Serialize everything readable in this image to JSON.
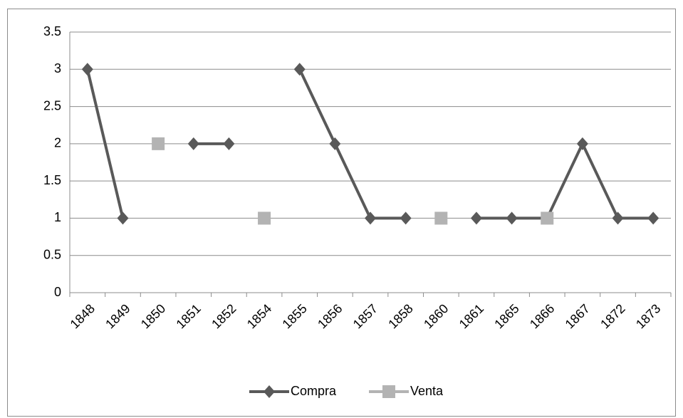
{
  "chart_data": {
    "type": "line",
    "categories": [
      "1848",
      "1849",
      "1850",
      "1851",
      "1852",
      "1854",
      "1855",
      "1856",
      "1857",
      "1858",
      "1860",
      "1861",
      "1865",
      "1866",
      "1867",
      "1872",
      "1873"
    ],
    "series": [
      {
        "name": "Compra",
        "color": "#595959",
        "marker": "diamond",
        "values": [
          3,
          1,
          null,
          2,
          2,
          null,
          3,
          2,
          1,
          1,
          null,
          1,
          1,
          1,
          2,
          1,
          1
        ]
      },
      {
        "name": "Venta",
        "color": "#b3b3b3",
        "marker": "square",
        "values": [
          null,
          null,
          2,
          null,
          null,
          1,
          null,
          null,
          null,
          null,
          1,
          null,
          null,
          1,
          null,
          null,
          null
        ]
      }
    ],
    "ylim": [
      0,
      3.5
    ],
    "yticks": [
      0,
      0.5,
      1,
      1.5,
      2,
      2.5,
      3,
      3.5
    ],
    "grid": true,
    "legend": "bottom"
  }
}
